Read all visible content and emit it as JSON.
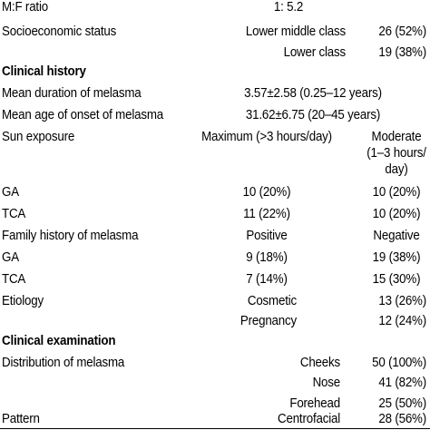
{
  "table": {
    "rows": [
      {
        "label": "M:F ratio",
        "c2": "1: 5.2",
        "c3": ""
      },
      {
        "label": "Socioeconomic status",
        "c2": "Lower middle class",
        "c3": "26 (52%)"
      },
      {
        "label": "",
        "c2": "Lower class",
        "c3": "19 (38%)"
      },
      {
        "label": "Clinical history",
        "c2": "",
        "c3": ""
      },
      {
        "label": "Mean duration of melasma",
        "c2": "3.57±2.58 (0.25–12 years)",
        "c3": ""
      },
      {
        "label": "Mean age of onset of melasma",
        "c2": "31.62±6.75 (20–45 years)",
        "c3": ""
      },
      {
        "label": "Sun exposure",
        "c2": "Maximum (>3 hours/day)",
        "c3_lines": [
          "Moderate",
          "(1–3 hours/",
          "day)"
        ]
      },
      {
        "label": "GA",
        "c2": "10 (20%)",
        "c3": "10 (20%)"
      },
      {
        "label": "TCA",
        "c2": "11 (22%)",
        "c3": "10 (20%)"
      },
      {
        "label": "Family history of melasma",
        "c2": "Positive",
        "c3": "Negative"
      },
      {
        "label": "GA",
        "c2": "9 (18%)",
        "c3": "19 (38%)"
      },
      {
        "label": "TCA",
        "c2": "7 (14%)",
        "c3": "15 (30%)"
      },
      {
        "label": "Etiology",
        "c2": "Cosmetic",
        "c3": "13 (26%)"
      },
      {
        "label": "",
        "c2": "Pregnancy",
        "c3": "12 (24%)"
      },
      {
        "label": "Clinical examination",
        "c2": "",
        "c3": ""
      },
      {
        "label": "Distribution of melasma",
        "c2": "Cheeks",
        "c3": "50 (100%)"
      },
      {
        "label": "",
        "c2": "Nose",
        "c3": "41 (82%)"
      },
      {
        "label": "",
        "c2": "Forehead",
        "c3": "25 (50%)"
      },
      {
        "label": "Pattern",
        "c2": "Centrofacial",
        "c3": "28 (56%)"
      }
    ]
  }
}
